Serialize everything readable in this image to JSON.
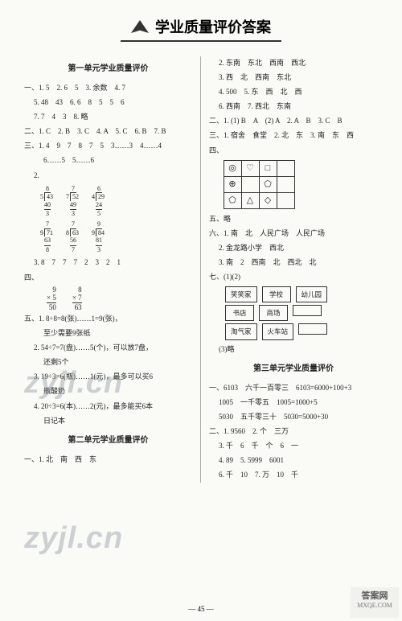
{
  "header": {
    "title": "学业质量评价答案"
  },
  "pageNumber": "— 45 —",
  "watermark": "zyjl.cn",
  "corner": {
    "line1": "答案网",
    "line2": "MXQE.COM"
  },
  "left": {
    "section1_title": "第一单元学业质量评价",
    "s1_l1": "一、1. 5　2. 6　5　3. 余数　4. 7",
    "s1_l2": "5. 48　43　6. 6　8　5　5　6",
    "s1_l3": "7. 7　4　3　8. 略",
    "s1_l4": "二、1. C　2. B　3. C　4. A　5. C　6. B　7. B",
    "s1_l5": "三、1. 4　9　7　8　7　5　3……3　4……4",
    "s1_l6": "6……5　5……6",
    "div1": [
      {
        "q": "8",
        "dv": "5",
        "dd": "43",
        "s1": "40",
        "r": "3"
      },
      {
        "q": "7",
        "dv": "7",
        "dd": "52",
        "s1": "49",
        "r": "3"
      },
      {
        "q": "6",
        "dv": "4",
        "dd": "29",
        "s1": "24",
        "r": "5"
      }
    ],
    "div2": [
      {
        "q": "7",
        "dv": "9",
        "dd": "71",
        "s1": "63",
        "r": "8"
      },
      {
        "q": "7",
        "dv": "8",
        "dd": "63",
        "s1": "56",
        "r": "7"
      },
      {
        "q": "9",
        "dv": "9",
        "dd": "84",
        "s1": "81",
        "r": "3"
      }
    ],
    "s1_l7": "3. 8　7　7　7　2　3　2　1",
    "mult": [
      {
        "a": "9",
        "b": "× 5",
        "r": "50"
      },
      {
        "a": "8",
        "b": "× 7",
        "r": "63"
      }
    ],
    "s1_l8": "四、",
    "s1_l9": "五、1. 8÷8=8(张)……1=9(张)，",
    "s1_l10": "至少需要9张纸",
    "s1_l11": "2. 54÷7=7(盘)……5(个)，可以放7盘，",
    "s1_l12": "还剩5个",
    "s1_l13": "3. 19÷3=6(瓶)……1(元)，最多可以买6",
    "s1_l14": "瓶酸奶",
    "s1_l15": "4. 20÷3=6(本)……2(元)，最多能买6本",
    "s1_l16": "日记本",
    "section2_title": "第二单元学业质量评价",
    "s2_l1": "一、1. 北　南　西　东"
  },
  "right": {
    "r_l1": "2. 东南　东北　西南　西北",
    "r_l2": "3. 西　北　西南　东北",
    "r_l3": "4. 500　5. 东　西　北　西",
    "r_l4": "6. 西南　7. 西北　东南",
    "r_l5": "二、1. (1) B　A　(2) A　2. A　B　3. C　B",
    "r_l6": "三、1. 宿舍　食堂　2. 北　东　3. 南　东　西",
    "r_l7": "四、",
    "grid": [
      "◎",
      "♡",
      "□",
      " ",
      "⊕",
      " ",
      "⬠",
      " ",
      "⬠",
      "△",
      "◇",
      " "
    ],
    "r_l8": "五、略",
    "r_l9": "六、1. 南　北　人民广场　人民广场",
    "r_l10": "2. 金龙路小学　西北",
    "r_l11": "3. 南　2　西南　北　西北　北",
    "r_l12": "七、(1)(2)",
    "boxes1": [
      "笑笑家",
      "学校",
      "幼儿园"
    ],
    "boxes2": [
      "书店",
      "商场",
      ""
    ],
    "boxes3": [
      "淘气家",
      "火车站",
      ""
    ],
    "r_l13": "(3)略",
    "section3_title": "第三单元学业质量评价",
    "r_l14": "一、6103　六千一百零三　6103=6000+100+3",
    "r_l15": "1005　一千零五　1005=1000+5",
    "r_l16": "5030　五千零三十　5030=5000+30",
    "r_l17": "二、1. 9560　2. 个　三万",
    "r_l18": "3. 千　6　千　个　6　一",
    "r_l19": "4. 89　5. 5999　6001",
    "r_l20": "6. 千　10　7. 万　10　千"
  }
}
